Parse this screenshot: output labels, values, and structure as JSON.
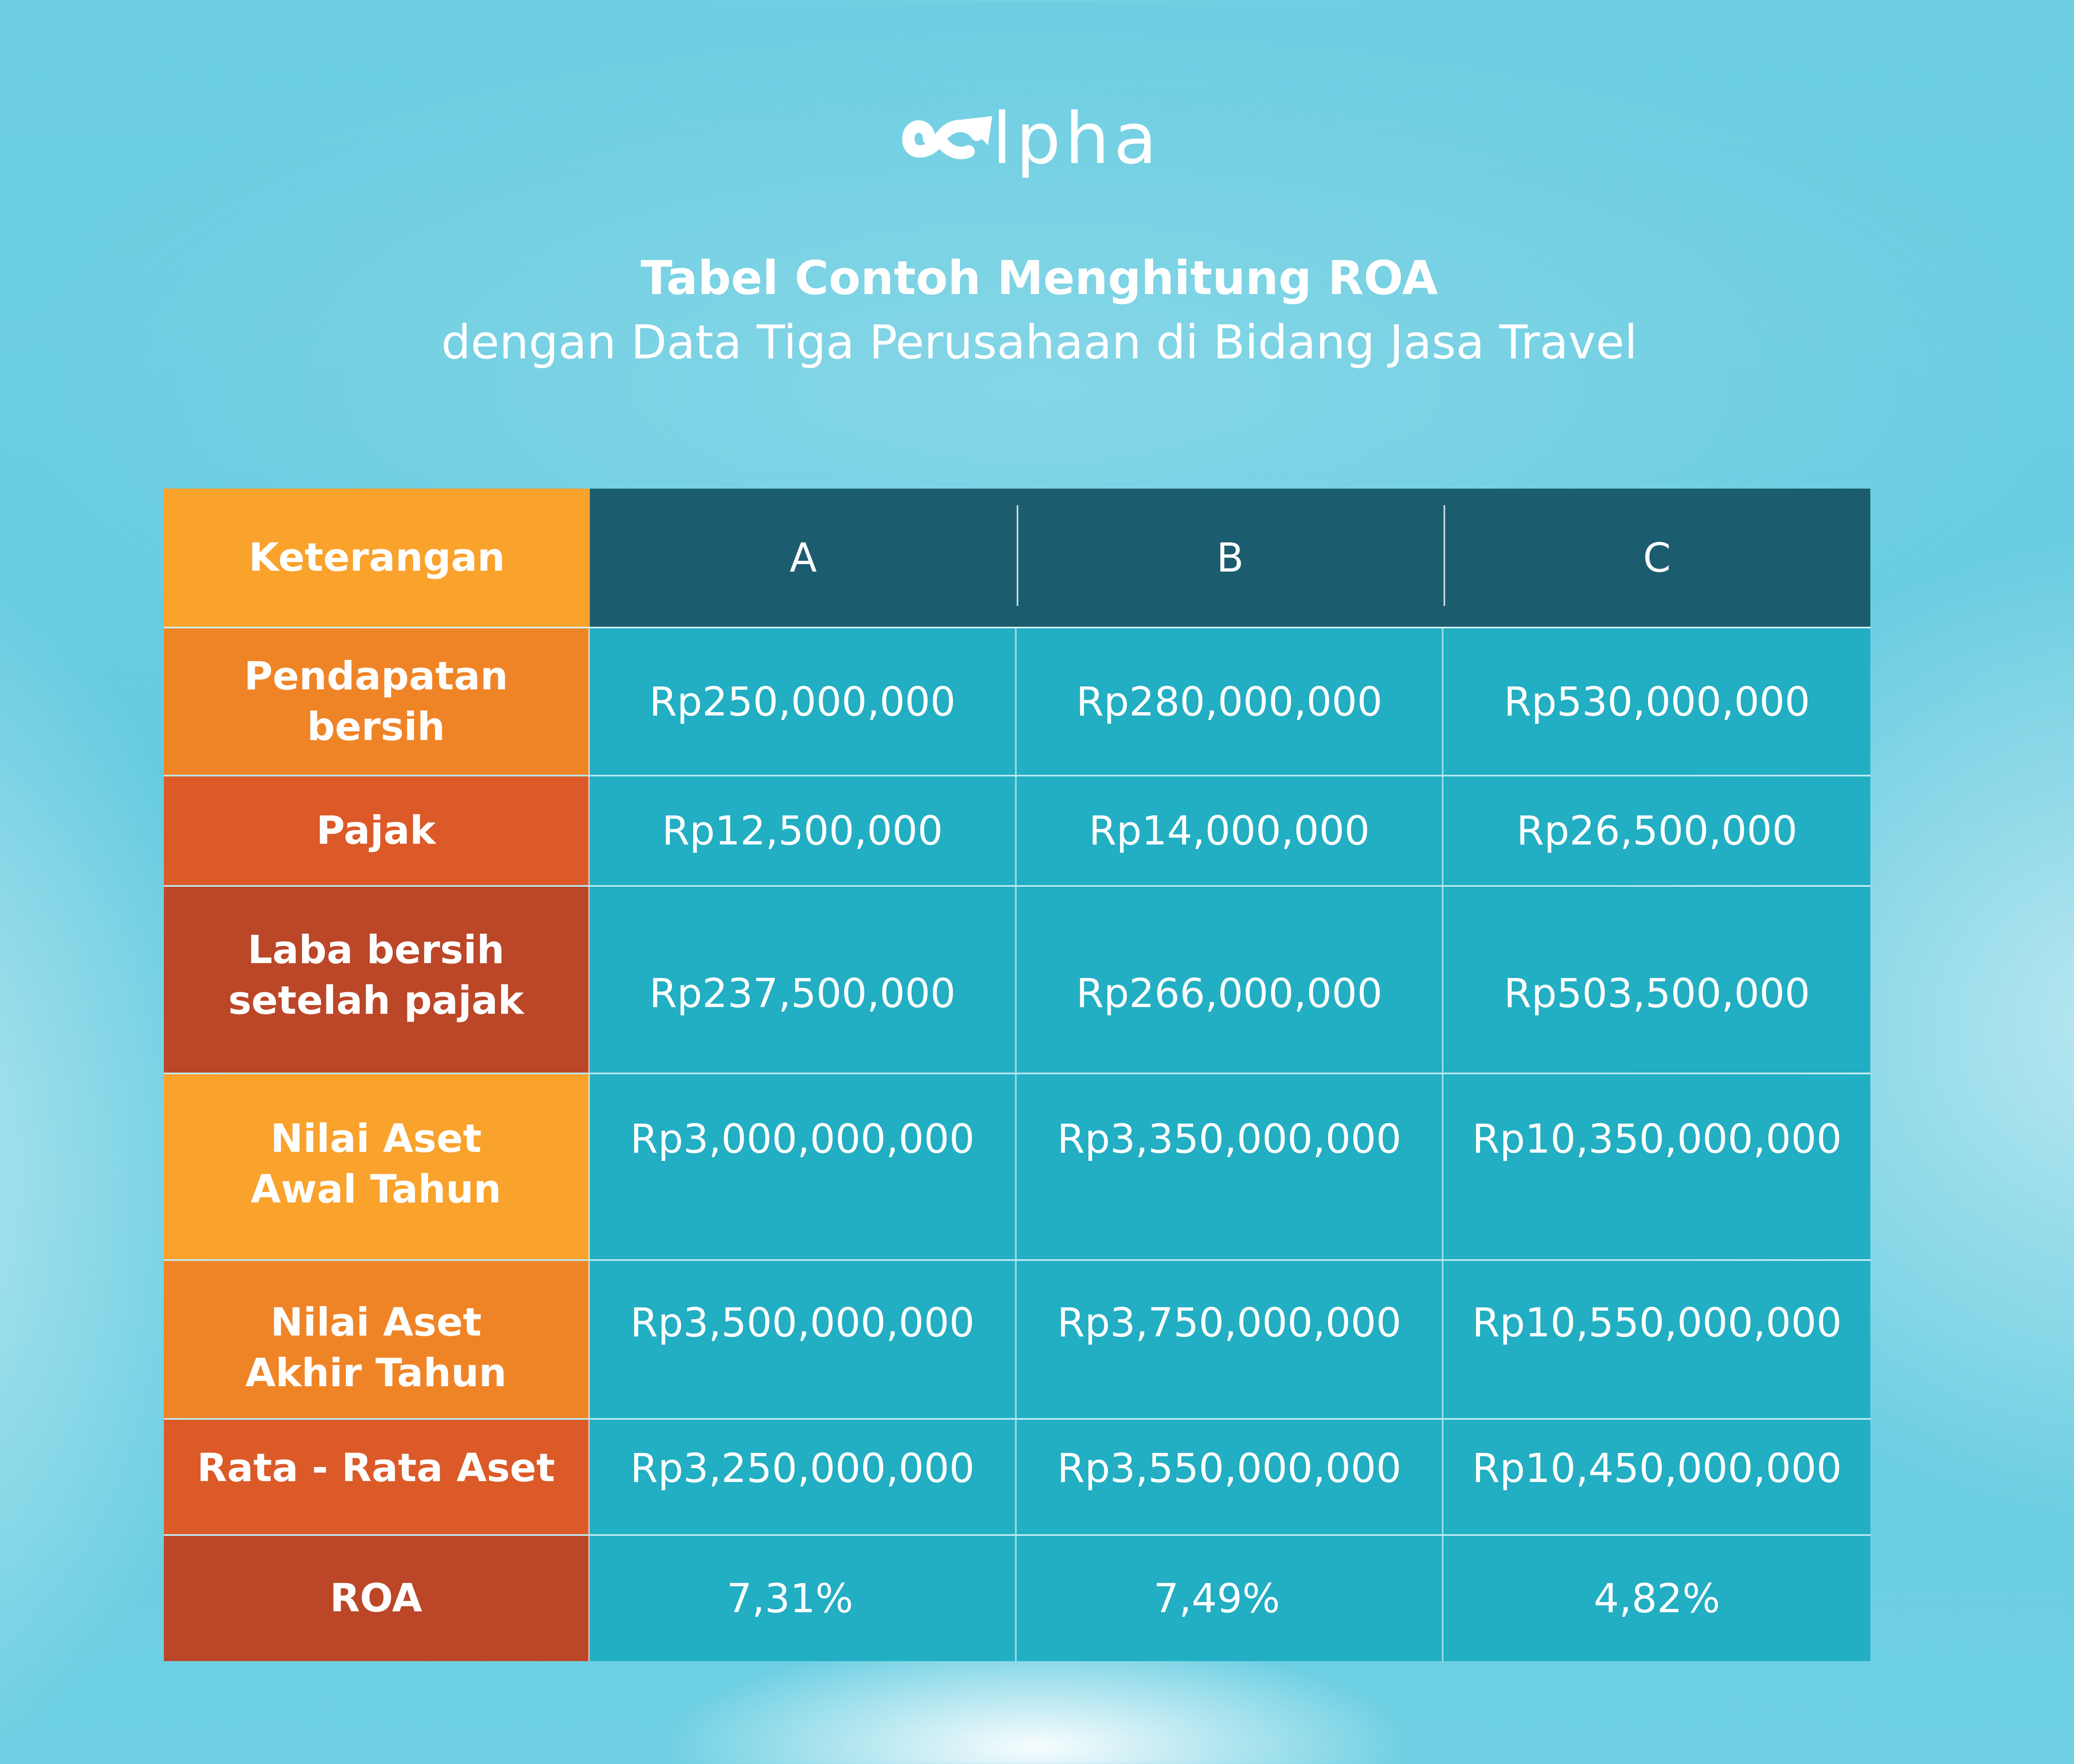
{
  "brand": {
    "name": "lpha",
    "logo_icon": "alpha-infinity-arrow-logo",
    "logo_color": "#ffffff"
  },
  "title": {
    "line1": "Tabel Contoh Menghitung ROA",
    "line2": "dengan Data Tiga Perusahaan di Bidang Jasa Travel"
  },
  "colors": {
    "header_dark": "#1b5d6f",
    "value_cells": "#22aec3",
    "label_orange_light": "#f9a22c",
    "label_orange": "#ef8427",
    "label_orange_red": "#db5a28",
    "label_rust": "#bb4728"
  },
  "table": {
    "header": {
      "label": "Keterangan",
      "columns": [
        "A",
        "B",
        "C"
      ]
    },
    "rows": [
      {
        "label": [
          "Pendapatan bersih"
        ],
        "values": [
          "Rp250,000,000",
          "Rp280,000,000",
          "Rp530,000,000"
        ]
      },
      {
        "label": [
          "Pajak"
        ],
        "values": [
          "Rp12,500,000",
          "Rp14,000,000",
          "Rp26,500,000"
        ]
      },
      {
        "label": [
          "Laba bersih",
          "setelah pajak"
        ],
        "values": [
          "Rp237,500,000",
          "Rp266,000,000",
          "Rp503,500,000"
        ]
      },
      {
        "label": [
          "Nilai Aset",
          "Awal Tahun"
        ],
        "values": [
          "Rp3,000,000,000",
          "Rp3,350,000,000",
          "Rp10,350,000,000"
        ]
      },
      {
        "label": [
          "Nilai Aset",
          "Akhir Tahun"
        ],
        "values": [
          "Rp3,500,000,000",
          "Rp3,750,000,000",
          "Rp10,550,000,000"
        ]
      },
      {
        "label": [
          "Rata - Rata Aset"
        ],
        "values": [
          "Rp3,250,000,000",
          "Rp3,550,000,000",
          "Rp10,450,000,000"
        ]
      },
      {
        "label": [
          "ROA"
        ],
        "values": [
          "7,31%",
          "7,49%",
          "4,82%"
        ]
      }
    ]
  }
}
